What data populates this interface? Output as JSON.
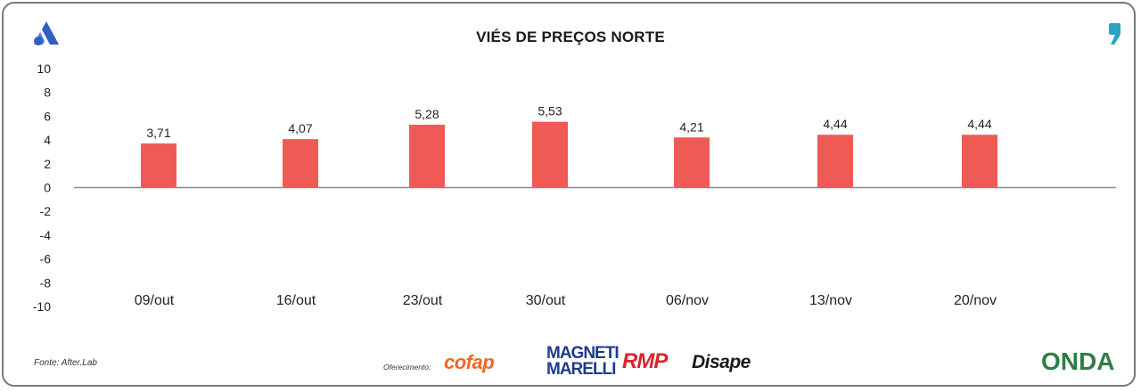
{
  "chart_data": {
    "type": "bar",
    "title": "VIÉS DE PREÇOS NORTE",
    "categories": [
      "09/out",
      "16/out",
      "23/out",
      "30/out",
      "06/nov",
      "13/nov",
      "20/nov"
    ],
    "values": [
      3.71,
      4.07,
      5.28,
      5.53,
      4.21,
      4.44,
      4.44
    ],
    "value_labels": [
      "3,71",
      "4,07",
      "5,28",
      "5,53",
      "4,21",
      "4,44",
      "4,44"
    ],
    "ylim": [
      -10,
      10
    ],
    "yticks": [
      "10",
      "8",
      "6",
      "4",
      "2",
      "0",
      "-2",
      "-4",
      "-6",
      "-8",
      "-10"
    ],
    "xlabel": "",
    "ylabel": "",
    "bar_color": "#f05a55",
    "grid": false
  },
  "footer": {
    "source": "Fonte: After.Lab",
    "offer_label": "Oferecimento:",
    "sponsors": [
      "cofap",
      "MAGNETI MARELLI",
      "RMP",
      "Disape"
    ],
    "brand": "ONDA"
  },
  "colors": {
    "brand_blue": "#2f5fc4",
    "brand_teal": "#2ba3c4",
    "bar": "#f05a55"
  }
}
